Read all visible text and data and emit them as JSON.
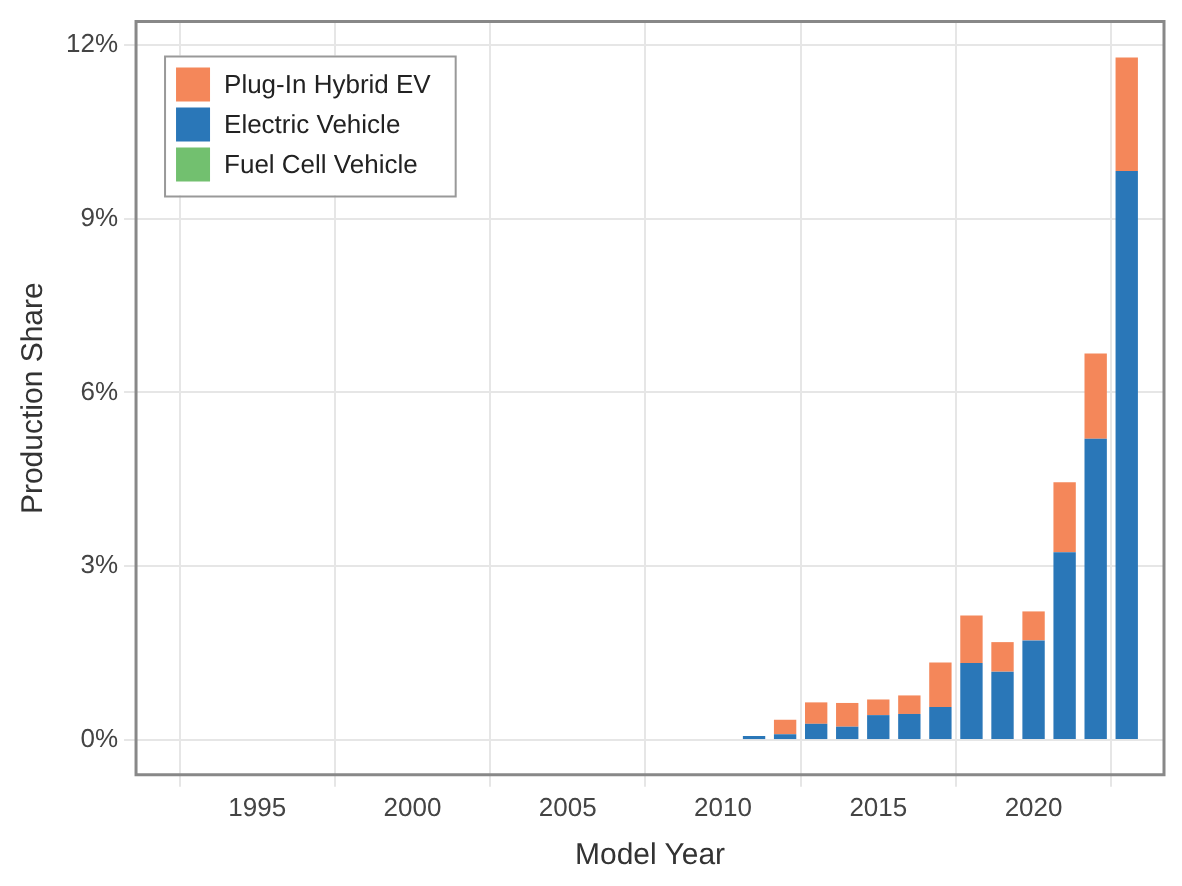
{
  "chart_data": {
    "type": "bar",
    "stacked": true,
    "xlabel": "Model Year",
    "ylabel": "Production Share",
    "x": [
      1992,
      1993,
      1994,
      1995,
      1996,
      1997,
      1998,
      1999,
      2000,
      2001,
      2002,
      2003,
      2004,
      2005,
      2006,
      2007,
      2008,
      2009,
      2010,
      2011,
      2012,
      2013,
      2014,
      2015,
      2016,
      2017,
      2018,
      2019,
      2020,
      2021,
      2022,
      2023
    ],
    "series": [
      {
        "name": "Fuel Cell Vehicle",
        "color": "#72c06f",
        "values": [
          0,
          0,
          0,
          0,
          0,
          0,
          0,
          0,
          0,
          0,
          0,
          0,
          0,
          0,
          0,
          0,
          0,
          0,
          0,
          0,
          0,
          0,
          0,
          0,
          0,
          0,
          0,
          0,
          0,
          0,
          0,
          0
        ]
      },
      {
        "name": "Electric Vehicle",
        "color": "#2a77b8",
        "values": [
          0,
          0,
          0,
          0,
          0,
          0,
          0,
          0,
          0,
          0,
          0,
          0,
          0,
          0,
          0,
          0,
          0,
          0,
          0,
          0.07,
          0.1,
          0.28,
          0.23,
          0.43,
          0.45,
          0.57,
          1.33,
          1.18,
          1.72,
          3.24,
          5.2,
          9.82
        ]
      },
      {
        "name": "Plug-In Hybrid EV",
        "color": "#f4875a",
        "values": [
          0,
          0,
          0,
          0,
          0,
          0,
          0,
          0,
          0,
          0,
          0,
          0,
          0,
          0,
          0,
          0,
          0,
          0,
          0,
          0,
          0.25,
          0.37,
          0.41,
          0.27,
          0.32,
          0.77,
          0.82,
          0.51,
          0.5,
          1.21,
          1.47,
          1.96
        ]
      }
    ],
    "xlim": [
      1991.1,
      2024.2
    ],
    "xticks": [
      1995,
      2000,
      2005,
      2010,
      2015,
      2020
    ],
    "ylim": [
      -0.6,
      12.4
    ],
    "yticks": [
      {
        "value": 0,
        "label": "0%"
      },
      {
        "value": 3,
        "label": "3%"
      },
      {
        "value": 6,
        "label": "6%"
      },
      {
        "value": 9,
        "label": "9%"
      },
      {
        "value": 12,
        "label": "12%"
      }
    ],
    "grid": true,
    "legend": "top left"
  }
}
